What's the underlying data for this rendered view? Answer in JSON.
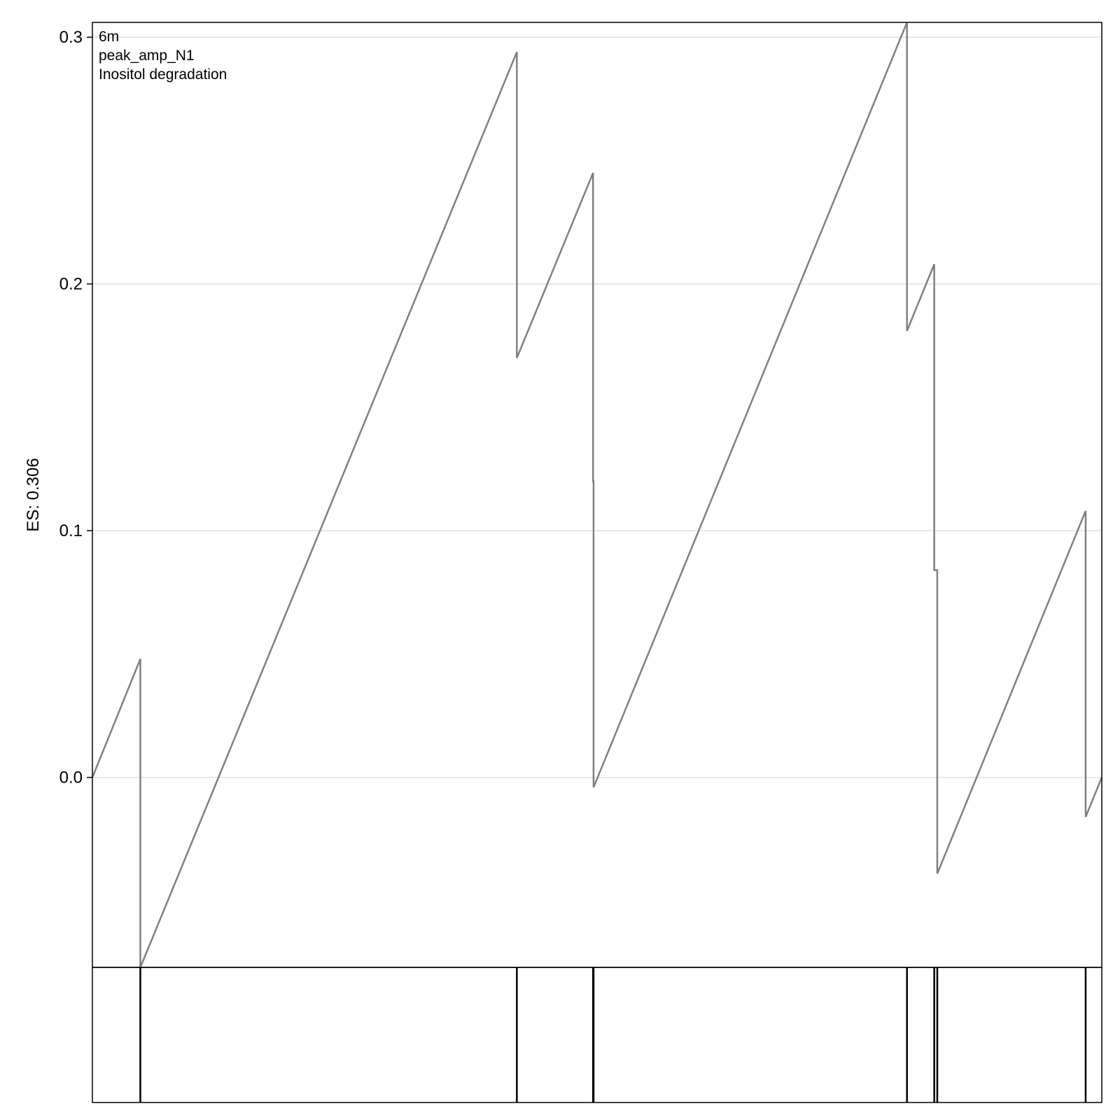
{
  "chart_data": {
    "type": "line",
    "annotations": [
      "6m",
      "peak_amp_N1",
      "Inositol degradation"
    ],
    "ylabel": "ES: 0.306",
    "xlabel": "",
    "yticks": [
      0.0,
      0.1,
      0.2,
      0.3
    ],
    "ytick_labels": [
      "0.0",
      "0.1",
      "0.2",
      "0.3"
    ],
    "xlim": [
      0,
      100
    ],
    "ylim": [
      -0.077,
      0.306
    ],
    "grid": true,
    "line_color": "#808080",
    "series": [
      {
        "points": [
          [
            0,
            0.0
          ],
          [
            4.75,
            0.048
          ],
          [
            4.75,
            -0.077
          ],
          [
            42.05,
            0.294
          ],
          [
            42.05,
            0.17
          ],
          [
            49.6,
            0.245
          ],
          [
            49.6,
            0.12
          ],
          [
            49.65,
            0.12
          ],
          [
            49.65,
            -0.004
          ],
          [
            80.7,
            0.306
          ],
          [
            80.7,
            0.181
          ],
          [
            83.4,
            0.208
          ],
          [
            83.4,
            0.084
          ],
          [
            83.7,
            0.084
          ],
          [
            83.7,
            -0.039
          ],
          [
            98.4,
            0.108
          ],
          [
            98.4,
            -0.016
          ],
          [
            100,
            0.0
          ]
        ]
      }
    ],
    "hit_positions": [
      4.75,
      42.05,
      49.6,
      49.65,
      80.7,
      83.4,
      83.7,
      98.4
    ]
  }
}
